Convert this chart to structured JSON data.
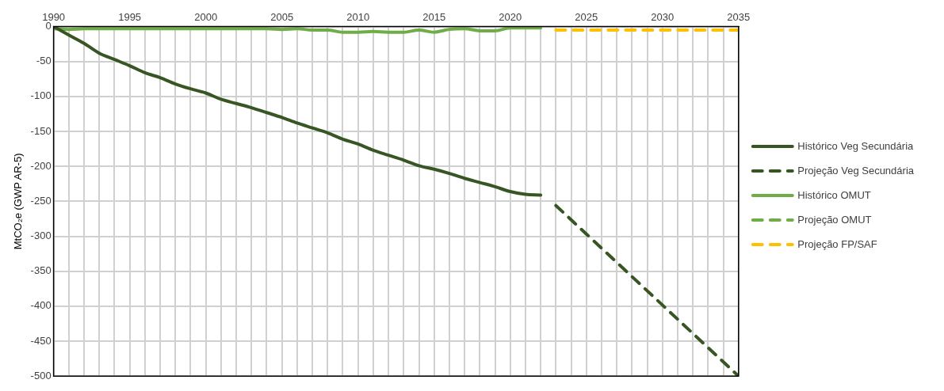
{
  "chart_data": {
    "type": "line",
    "ylabel": "MtCO₂e (GWP AR-5)",
    "xlim": [
      1990,
      2035
    ],
    "ylim": [
      -500,
      0
    ],
    "xticks": [
      1990,
      {
        "value": 1991,
        "label": null
      },
      {
        "value": 1992,
        "label": null
      },
      {
        "value": 1993,
        "label": null
      },
      {
        "value": 1994,
        "label": null
      },
      1995,
      {
        "value": 1996,
        "label": null
      },
      {
        "value": 1997,
        "label": null
      },
      {
        "value": 1998,
        "label": null
      },
      {
        "value": 1999,
        "label": null
      },
      2000,
      {
        "value": 2001,
        "label": null
      },
      {
        "value": 2002,
        "label": null
      },
      {
        "value": 2003,
        "label": null
      },
      {
        "value": 2004,
        "label": null
      },
      2005,
      {
        "value": 2006,
        "label": null
      },
      {
        "value": 2007,
        "label": null
      },
      {
        "value": 2008,
        "label": null
      },
      {
        "value": 2009,
        "label": null
      },
      2010,
      {
        "value": 2011,
        "label": null
      },
      {
        "value": 2012,
        "label": null
      },
      {
        "value": 2013,
        "label": null
      },
      {
        "value": 2014,
        "label": null
      },
      2015,
      {
        "value": 2016,
        "label": null
      },
      {
        "value": 2017,
        "label": null
      },
      {
        "value": 2018,
        "label": null
      },
      {
        "value": 2019,
        "label": null
      },
      2020,
      {
        "value": 2021,
        "label": null
      },
      {
        "value": 2022,
        "label": null
      },
      {
        "value": 2023,
        "label": null
      },
      {
        "value": 2024,
        "label": null
      },
      2025,
      {
        "value": 2026,
        "label": null
      },
      {
        "value": 2027,
        "label": null
      },
      {
        "value": 2028,
        "label": null
      },
      {
        "value": 2029,
        "label": null
      },
      2030,
      {
        "value": 2031,
        "label": null
      },
      {
        "value": 2032,
        "label": null
      },
      {
        "value": 2033,
        "label": null
      },
      {
        "value": 2034,
        "label": null
      },
      2035
    ],
    "yticks": [
      0,
      -50,
      -100,
      -150,
      -200,
      -250,
      -300,
      -350,
      -400,
      -450,
      -500
    ],
    "grid": true,
    "legend": "right",
    "marker": "none",
    "series": [
      {
        "name": "Histórico Veg Secundária",
        "color": "#375623",
        "line_style": "solid",
        "x": [
          1990,
          1991,
          1992,
          1993,
          1994,
          1995,
          1996,
          1997,
          1998,
          1999,
          2000,
          2001,
          2002,
          2003,
          2004,
          2005,
          2006,
          2007,
          2008,
          2009,
          2010,
          2011,
          2012,
          2013,
          2014,
          2015,
          2016,
          2017,
          2018,
          2019,
          2020,
          2021,
          2022
        ],
        "values": [
          0,
          -12,
          -24,
          -38,
          -47,
          -56,
          -66,
          -73,
          -82,
          -89,
          -95,
          -104,
          -110,
          -116,
          -123,
          -130,
          -138,
          -145,
          -152,
          -161,
          -168,
          -177,
          -184,
          -191,
          -199,
          -204,
          -210,
          -217,
          -223,
          -229,
          -236,
          -240,
          -241
        ]
      },
      {
        "name": "Projeção Veg Secundária",
        "color": "#375623",
        "line_style": "dashed",
        "x": [
          2023,
          2035
        ],
        "values": [
          -256,
          -500
        ]
      },
      {
        "name": "Histórico OMUT",
        "color": "#70ad47",
        "line_style": "solid",
        "x": [
          1990,
          1991,
          1992,
          1993,
          1994,
          1995,
          1996,
          1997,
          1998,
          1999,
          2000,
          2001,
          2002,
          2003,
          2004,
          2005,
          2006,
          2007,
          2008,
          2009,
          2010,
          2011,
          2012,
          2013,
          2014,
          2015,
          2016,
          2017,
          2018,
          2019,
          2020,
          2021,
          2022
        ],
        "values": [
          -3,
          -4,
          -3,
          -3,
          -3,
          -3,
          -3,
          -3,
          -3,
          -3,
          -3,
          -3,
          -3,
          -3,
          -3,
          -4,
          -3,
          -5,
          -5,
          -8,
          -8,
          -7,
          -8,
          -8,
          -5,
          -8,
          -4,
          -3,
          -6,
          -6,
          -2,
          -2,
          -2
        ]
      },
      {
        "name": "Projeção OMUT",
        "color": "#70ad47",
        "line_style": "dashed"
      },
      {
        "name": "Projeção FP/SAF",
        "color": "#ffc000",
        "line_style": "dashed",
        "x": [
          2023,
          2035
        ],
        "values": [
          -5,
          -5
        ]
      }
    ]
  }
}
